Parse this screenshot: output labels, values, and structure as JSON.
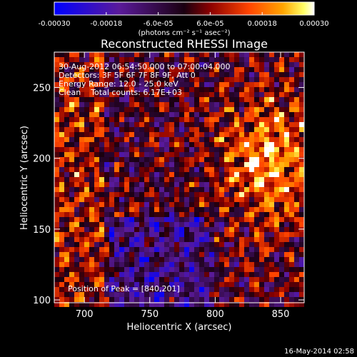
{
  "chart_data": {
    "type": "heatmap",
    "title": "Reconstructed RHESSI Image",
    "xlabel": "Heliocentric X (arcsec)",
    "ylabel": "Heliocentric Y (arcsec)",
    "xlim": [
      677,
      868
    ],
    "ylim": [
      98,
      275
    ],
    "xticks": [
      "700",
      "750",
      "800",
      "850"
    ],
    "xtick_values": [
      700,
      750,
      800,
      850
    ],
    "yticks": [
      "100",
      "150",
      "200",
      "250"
    ],
    "ytick_values": [
      100,
      150,
      200,
      250
    ],
    "colorbar": {
      "ticks": [
        "-0.00030",
        "-0.00018",
        "-6.0e-05",
        "6.0e-05",
        "0.00018",
        "0.00030"
      ],
      "tick_values": [
        -0.0003,
        -0.00018,
        -6e-05,
        6e-05,
        0.00018,
        0.0003
      ],
      "range": [
        -0.0003,
        0.0003
      ],
      "unit_label": "(photons cm⁻² s⁻¹ asec⁻²)",
      "colors": [
        "#0000ff",
        "#5a1a9a",
        "#1a0010",
        "#8b0000",
        "#ff4500",
        "#ffa500",
        "#ffff66",
        "#ffffff"
      ]
    },
    "annotations": [
      "30-Aug-2012 06:54:50.000 to 07:00:04.000",
      "Detectors: 3F 5F 6F 7F 8F 9F, Att 0",
      "Energy Range: 12.0 - 25.0 keV",
      "Clean    Total counts: 6.17E+03",
      "Position of Peak = [840,201]"
    ],
    "peak": [
      840,
      201
    ],
    "timestamp": "16-May-2014 02:58"
  }
}
